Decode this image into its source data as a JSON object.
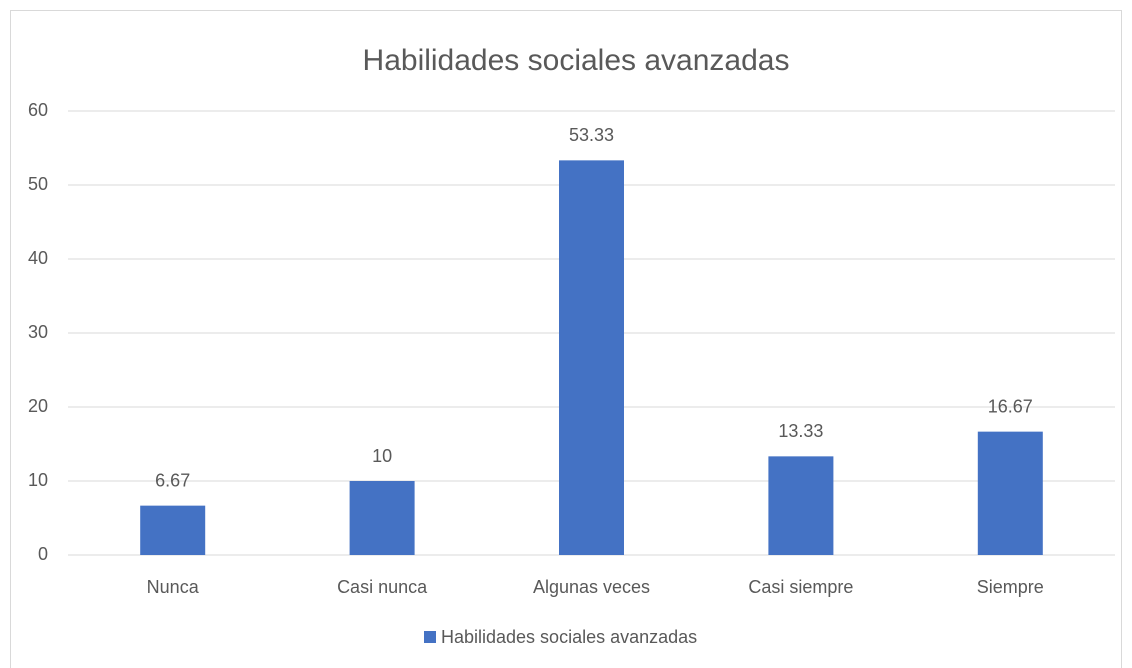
{
  "chart_data": {
    "type": "bar",
    "title": "Habilidades sociales avanzadas",
    "categories": [
      "Nunca",
      "Casi nunca",
      "Algunas veces",
      "Casi siempre",
      "Siempre"
    ],
    "series": [
      {
        "name": "Habilidades sociales avanzadas",
        "color": "#4472c4",
        "values": [
          6.67,
          10,
          53.33,
          13.33,
          16.67
        ]
      }
    ],
    "ylim": [
      0,
      60
    ],
    "yticks": [
      0,
      10,
      20,
      30,
      40,
      50,
      60
    ],
    "grid": true,
    "legend": "bottom"
  }
}
